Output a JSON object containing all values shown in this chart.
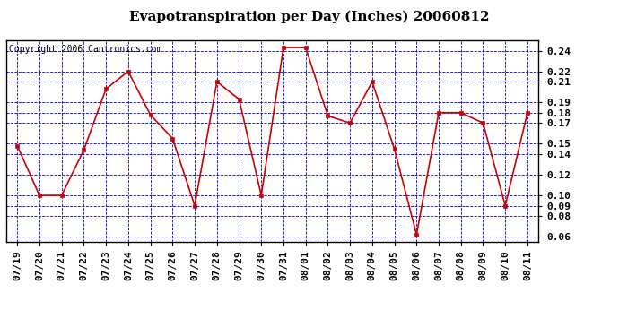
{
  "title": "Evapotranspiration per Day (Inches) 20060812",
  "copyright": "Copyright 2006 Cantronics.com",
  "dates": [
    "07/19",
    "07/20",
    "07/21",
    "07/22",
    "07/23",
    "07/24",
    "07/25",
    "07/26",
    "07/27",
    "07/28",
    "07/29",
    "07/30",
    "07/31",
    "08/01",
    "08/02",
    "08/03",
    "08/04",
    "08/05",
    "08/06",
    "08/07",
    "08/08",
    "08/09",
    "08/10",
    "08/11"
  ],
  "values": [
    0.148,
    0.1,
    0.1,
    0.144,
    0.203,
    0.22,
    0.178,
    0.155,
    0.09,
    0.21,
    0.193,
    0.1,
    0.243,
    0.243,
    0.177,
    0.17,
    0.21,
    0.145,
    0.062,
    0.18,
    0.18,
    0.17,
    0.09,
    0.18
  ],
  "line_color": "#cc0000",
  "marker": "s",
  "marker_color": "#cc0000",
  "marker_size": 3,
  "fig_bg_color": "#ffffff",
  "plot_bg_color": "#ffffff",
  "grid_color": "#0000cc",
  "border_color": "#000000",
  "ylim": [
    0.055,
    0.25
  ],
  "yticks": [
    0.06,
    0.08,
    0.09,
    0.1,
    0.12,
    0.14,
    0.15,
    0.17,
    0.18,
    0.19,
    0.21,
    0.22,
    0.24
  ],
  "title_fontsize": 11,
  "tick_fontsize": 8,
  "copyright_fontsize": 7
}
